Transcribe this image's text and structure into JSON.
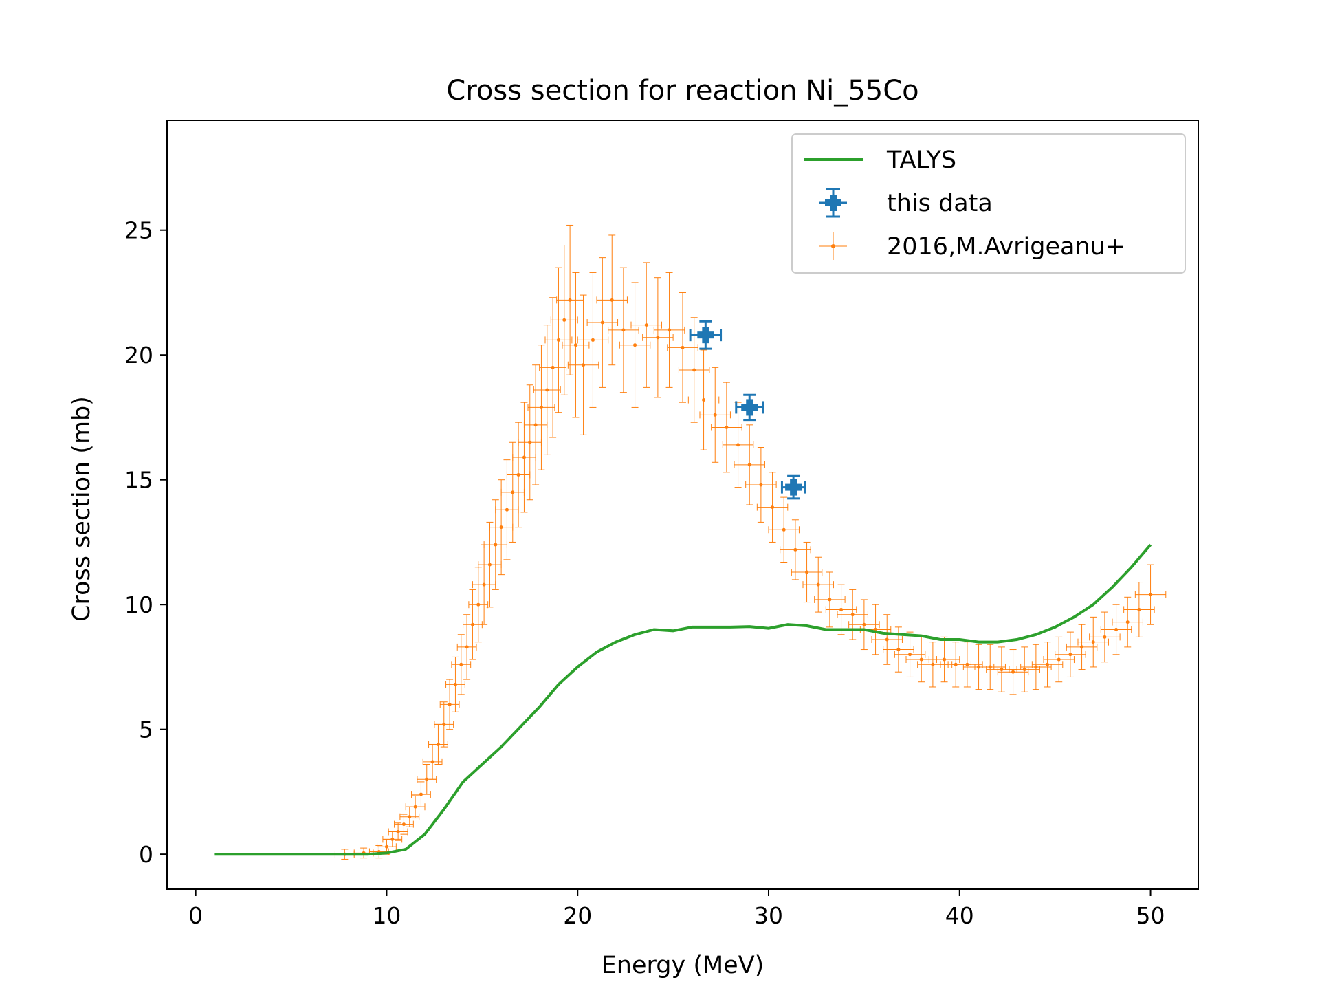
{
  "chart_data": {
    "type": "scatter",
    "title": "Cross section for reaction Ni_55Co",
    "xlabel": "Energy (MeV)",
    "ylabel": "Cross section (mb)",
    "xlim": [
      -1.5,
      52.5
    ],
    "ylim": [
      -1.4,
      29.4
    ],
    "xticks": [
      0,
      10,
      20,
      30,
      40,
      50
    ],
    "yticks": [
      0,
      5,
      10,
      15,
      20,
      25
    ],
    "grid": false,
    "legend_position": "top-right",
    "series": [
      {
        "name": "TALYS",
        "kind": "line",
        "color": "#2ca02c",
        "x": [
          1,
          2,
          3,
          4,
          5,
          6,
          7,
          8,
          9,
          10,
          11,
          12,
          13,
          14,
          15,
          16,
          17,
          18,
          19,
          20,
          21,
          22,
          23,
          24,
          25,
          26,
          27,
          28,
          29,
          30,
          31,
          32,
          33,
          34,
          35,
          36,
          37,
          38,
          39,
          40,
          41,
          42,
          43,
          44,
          45,
          46,
          47,
          48,
          49,
          50
        ],
        "y": [
          0,
          0,
          0,
          0,
          0,
          0,
          0,
          0,
          0,
          0.05,
          0.2,
          0.8,
          1.8,
          2.9,
          3.6,
          4.3,
          5.1,
          5.9,
          6.8,
          7.5,
          8.1,
          8.5,
          8.8,
          9.0,
          8.95,
          9.1,
          9.1,
          9.1,
          9.12,
          9.05,
          9.2,
          9.15,
          9.0,
          9.0,
          9.0,
          8.85,
          8.8,
          8.75,
          8.6,
          8.6,
          8.5,
          8.5,
          8.6,
          8.8,
          9.1,
          9.5,
          10.0,
          10.7,
          11.5,
          12.4
        ]
      },
      {
        "name": "this data",
        "kind": "errorbar",
        "color": "#1f77b4",
        "x": [
          26.7,
          29.0,
          31.3
        ],
        "y": [
          20.8,
          17.9,
          14.7
        ],
        "xerr": [
          0.8,
          0.7,
          0.6
        ],
        "yerr": [
          0.55,
          0.5,
          0.45
        ]
      },
      {
        "name": "2016,M.Avrigeanu+",
        "kind": "errorbar",
        "color": "#ff7f0e",
        "x": [
          7.8,
          8.8,
          9.6,
          10.0,
          10.3,
          10.6,
          10.9,
          11.2,
          11.5,
          11.8,
          12.1,
          12.4,
          12.7,
          13.0,
          13.3,
          13.6,
          13.9,
          14.2,
          14.5,
          14.8,
          15.1,
          15.4,
          15.7,
          16.0,
          16.3,
          16.6,
          16.9,
          17.2,
          17.5,
          17.8,
          18.1,
          18.4,
          18.7,
          19.0,
          19.3,
          19.6,
          19.9,
          20.3,
          20.8,
          21.3,
          21.8,
          22.4,
          23.0,
          23.6,
          24.2,
          24.8,
          25.5,
          26.1,
          26.6,
          27.2,
          27.8,
          28.4,
          29.0,
          29.6,
          30.2,
          30.8,
          31.4,
          32.0,
          32.6,
          33.2,
          33.8,
          34.4,
          35.0,
          35.6,
          36.2,
          36.8,
          37.4,
          38.0,
          38.6,
          39.2,
          39.8,
          40.4,
          41.0,
          41.6,
          42.2,
          42.8,
          43.4,
          44.0,
          44.6,
          45.2,
          45.8,
          46.4,
          47.0,
          47.6,
          48.2,
          48.8,
          49.4,
          50.0
        ],
        "y": [
          0.0,
          0.05,
          0.1,
          0.3,
          0.6,
          0.9,
          1.2,
          1.5,
          1.9,
          2.4,
          3.0,
          3.7,
          4.4,
          5.2,
          6.0,
          6.8,
          7.6,
          8.3,
          9.2,
          10.0,
          10.8,
          11.6,
          12.4,
          13.1,
          13.8,
          14.5,
          15.2,
          15.9,
          16.5,
          17.2,
          17.9,
          18.6,
          19.5,
          20.6,
          21.4,
          22.2,
          20.4,
          19.6,
          20.6,
          21.3,
          22.2,
          21.0,
          20.4,
          21.2,
          20.7,
          21.0,
          20.3,
          19.4,
          18.2,
          17.6,
          17.1,
          16.4,
          15.6,
          14.8,
          13.9,
          13.0,
          12.2,
          11.3,
          10.8,
          10.2,
          9.8,
          9.6,
          9.2,
          9.0,
          8.6,
          8.2,
          8.0,
          7.8,
          7.6,
          7.8,
          7.6,
          7.6,
          7.5,
          7.5,
          7.4,
          7.3,
          7.4,
          7.5,
          7.6,
          7.8,
          8.0,
          8.3,
          8.5,
          8.7,
          9.0,
          9.3,
          9.8,
          10.4
        ],
        "xerr": [
          0.5,
          0.5,
          0.5,
          0.5,
          0.5,
          0.5,
          0.5,
          0.5,
          0.5,
          0.5,
          0.5,
          0.5,
          0.5,
          0.5,
          0.5,
          0.5,
          0.5,
          0.5,
          0.5,
          0.5,
          0.6,
          0.6,
          0.6,
          0.6,
          0.6,
          0.6,
          0.6,
          0.6,
          0.6,
          0.6,
          0.7,
          0.7,
          0.7,
          0.7,
          0.7,
          0.7,
          0.7,
          0.8,
          0.8,
          0.8,
          0.8,
          0.8,
          0.8,
          0.8,
          0.8,
          0.8,
          0.8,
          0.8,
          0.8,
          0.8,
          0.8,
          0.8,
          0.8,
          0.8,
          0.8,
          0.8,
          0.8,
          0.8,
          0.8,
          0.8,
          0.8,
          0.8,
          0.8,
          0.8,
          0.8,
          0.8,
          0.8,
          0.8,
          0.8,
          0.8,
          0.8,
          0.8,
          0.8,
          0.8,
          0.8,
          0.8,
          0.8,
          0.8,
          0.8,
          0.8,
          0.8,
          0.8,
          0.8,
          0.8,
          0.8,
          0.8,
          0.8,
          0.8
        ],
        "yerr": [
          0.2,
          0.2,
          0.25,
          0.3,
          0.3,
          0.35,
          0.4,
          0.4,
          0.45,
          0.5,
          0.6,
          0.7,
          0.8,
          0.9,
          1.0,
          1.1,
          1.2,
          1.3,
          1.4,
          1.5,
          1.6,
          1.7,
          1.8,
          1.9,
          2.0,
          2.0,
          2.1,
          2.2,
          2.3,
          2.4,
          2.5,
          2.6,
          2.8,
          2.9,
          3.0,
          3.0,
          2.9,
          2.8,
          2.7,
          2.6,
          2.6,
          2.5,
          2.5,
          2.5,
          2.4,
          2.3,
          2.2,
          2.1,
          2.0,
          1.9,
          1.8,
          1.7,
          1.6,
          1.5,
          1.4,
          1.3,
          1.2,
          1.2,
          1.1,
          1.1,
          1.0,
          1.0,
          1.0,
          1.0,
          1.0,
          0.9,
          0.9,
          0.9,
          0.9,
          0.9,
          0.9,
          0.9,
          0.9,
          0.9,
          0.9,
          0.9,
          0.9,
          0.9,
          0.9,
          0.9,
          0.9,
          0.9,
          1.0,
          1.0,
          1.0,
          1.0,
          1.1,
          1.2
        ]
      }
    ]
  }
}
